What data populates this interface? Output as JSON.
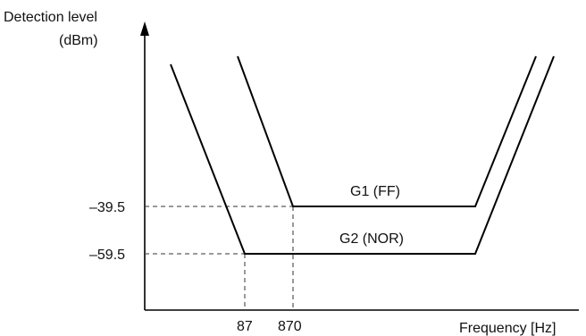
{
  "chart_data": {
    "type": "line",
    "ylabel_line1": "Detection level",
    "ylabel_line2": "(dBm)",
    "xlabel": "Frequency [Hz]",
    "y_ticks": [
      "–39.5",
      "–59.5"
    ],
    "x_ticks": [
      "87",
      "870"
    ],
    "series": [
      {
        "name": "G1 (FF)",
        "flat_level_dBm": -39.5,
        "corner_frequency_hz": 870
      },
      {
        "name": "G2 (NOR)",
        "flat_level_dBm": -59.5,
        "corner_frequency_hz": 87
      }
    ],
    "grid": false,
    "legend": "inline labels",
    "colors": {
      "line": "#000000",
      "guide": "#333333"
    }
  }
}
